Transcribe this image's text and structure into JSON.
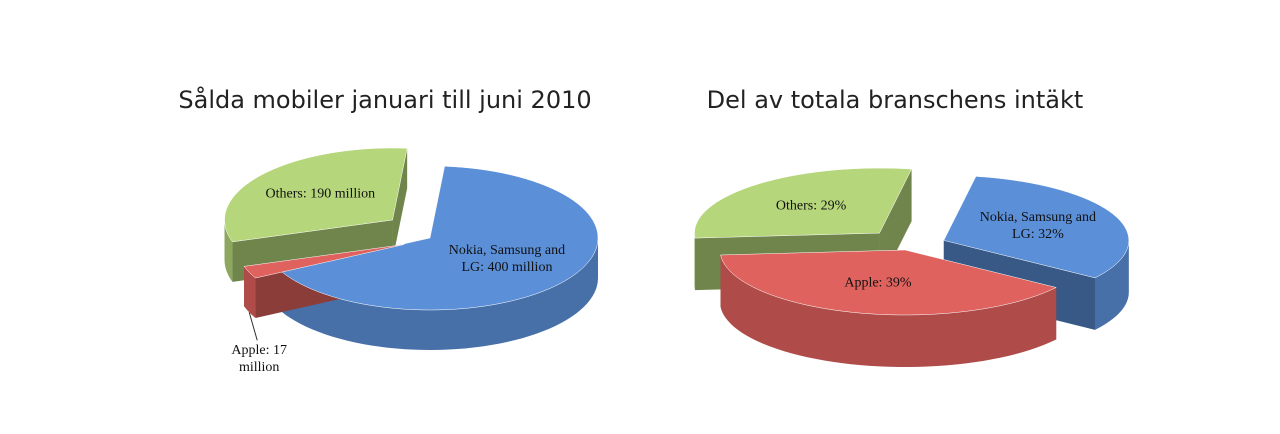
{
  "chart_data": [
    {
      "type": "pie",
      "title": "Sålda mobiler januari till juni 2010",
      "values": [
        400,
        17,
        190
      ],
      "value_labels": [
        "Nokia, Samsung and LG: 400 million",
        "Apple: 17 million",
        "Others: 190 million"
      ],
      "colors": [
        "#5b8fd8",
        "#e0625e",
        "#b5d67a"
      ]
    },
    {
      "type": "pie",
      "title": "Del av totala branschens intäkt",
      "values": [
        32,
        39,
        29
      ],
      "value_labels": [
        "Nokia, Samsung and LG: 32%",
        "Apple: 39%",
        "Others: 29%"
      ],
      "colors": [
        "#5b8fd8",
        "#e0625e",
        "#b5d67a"
      ]
    }
  ]
}
